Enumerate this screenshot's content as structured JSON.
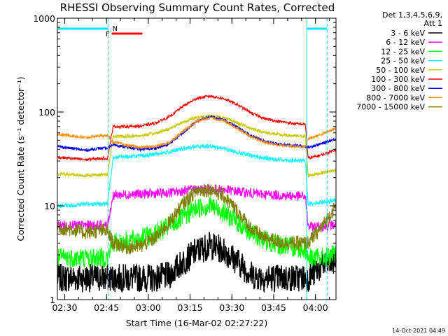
{
  "chart_data": {
    "type": "line",
    "title": "RHESSI Observing Summary Count Rates, Corrected",
    "xlabel": "Start Time (16-Mar-02 02:27:22)",
    "ylabel": "Corrected Count Rate (s⁻¹ detector⁻¹)",
    "x_unit": "minutes since 02:27:22",
    "xlim": [
      0,
      100
    ],
    "ylim": [
      1,
      1000
    ],
    "yscale": "log",
    "x_ticks": [
      {
        "t": 2.63,
        "label": "02:30"
      },
      {
        "t": 17.63,
        "label": "02:45"
      },
      {
        "t": 32.63,
        "label": "03:00"
      },
      {
        "t": 47.63,
        "label": "03:15"
      },
      {
        "t": 62.63,
        "label": "03:30"
      },
      {
        "t": 77.63,
        "label": "03:45"
      },
      {
        "t": 92.63,
        "label": "04:00"
      }
    ],
    "y_ticks": [
      {
        "v": 1,
        "label": "1"
      },
      {
        "v": 10,
        "label": "10"
      },
      {
        "v": 100,
        "label": "100"
      },
      {
        "v": 1000,
        "label": "1000"
      }
    ],
    "legend": {
      "position": "top-right",
      "header": [
        "Det 1,3,4,5,6,9,",
        "Att 1"
      ]
    },
    "timestamp": "14-Oct-2021 04:49",
    "flags": {
      "F_label": "F",
      "N_label": "N",
      "night_start_t": 18.2,
      "night_end_t": 89.5,
      "night_after_t": 96.8,
      "F_range_t": [
        19.5,
        30.5
      ]
    },
    "x": [
      0,
      5,
      10,
      15,
      18,
      20,
      25,
      30,
      35,
      40,
      45,
      50,
      55,
      60,
      65,
      70,
      75,
      80,
      85,
      89,
      90,
      95,
      100
    ],
    "series": [
      {
        "name": "3 - 6 keV",
        "color": "#000000",
        "values": [
          1.7,
          1.7,
          1.7,
          1.7,
          1.7,
          1.7,
          1.7,
          1.7,
          1.7,
          1.8,
          2.5,
          3.3,
          3.8,
          3.3,
          2.5,
          1.8,
          1.7,
          1.7,
          1.7,
          1.7,
          1.7,
          2.3,
          2.6
        ]
      },
      {
        "name": "6 - 12 keV",
        "color": "#ff00ff",
        "values": [
          6.2,
          6.2,
          6.2,
          6.2,
          6.2,
          13.0,
          13.2,
          13.4,
          13.5,
          13.8,
          14.4,
          15.0,
          15.2,
          14.8,
          14.2,
          13.6,
          13.2,
          12.9,
          12.7,
          12.6,
          6.0,
          6.0,
          6.3
        ]
      },
      {
        "name": "12 - 25 keV",
        "color": "#00ff00",
        "values": [
          2.8,
          2.8,
          2.8,
          2.8,
          2.8,
          4.0,
          4.2,
          4.5,
          5.0,
          6.0,
          7.5,
          9.5,
          10.0,
          8.5,
          6.5,
          5.0,
          4.2,
          3.8,
          3.6,
          3.5,
          2.8,
          2.8,
          3.0
        ]
      },
      {
        "name": "25 - 50 keV",
        "color": "#00ffff",
        "values": [
          10.0,
          10.0,
          10.5,
          10.5,
          10.5,
          33.0,
          33.5,
          34.0,
          35.5,
          37.5,
          40.5,
          43.0,
          43.5,
          40.5,
          37.0,
          34.0,
          32.0,
          31.0,
          30.5,
          30.0,
          10.5,
          11.0,
          11.5
        ]
      },
      {
        "name": "50 - 100 keV",
        "color": "#c8c800",
        "values": [
          22.0,
          21.5,
          21.0,
          21.5,
          21.5,
          55.0,
          55.0,
          56.0,
          59.0,
          66.0,
          78.0,
          88.0,
          91.0,
          86.0,
          76.0,
          66.0,
          60.0,
          57.0,
          55.5,
          55.0,
          21.0,
          22.5,
          24.0
        ]
      },
      {
        "name": "100 - 300 keV",
        "color": "#ff0000",
        "values": [
          33.0,
          32.0,
          31.0,
          32.0,
          32.0,
          70.0,
          70.0,
          71.0,
          76.0,
          88.0,
          115.0,
          140.0,
          148.0,
          138.0,
          118.0,
          96.0,
          84.0,
          79.0,
          75.0,
          74.0,
          32.0,
          35.0,
          40.0
        ]
      },
      {
        "name": "300 - 800 keV",
        "color": "#0000ff",
        "values": [
          43.0,
          41.0,
          39.0,
          41.0,
          41.0,
          45.0,
          42.0,
          40.0,
          41.0,
          45.0,
          60.0,
          80.0,
          89.0,
          82.0,
          68.0,
          55.0,
          48.0,
          45.0,
          44.0,
          43.0,
          42.0,
          46.0,
          52.0
        ]
      },
      {
        "name": "800 - 7000 keV",
        "color": "#ff8c00",
        "values": [
          58.0,
          56.0,
          53.0,
          56.0,
          56.0,
          48.0,
          44.0,
          42.0,
          43.0,
          47.0,
          62.0,
          80.0,
          87.0,
          80.0,
          66.0,
          53.0,
          47.0,
          44.0,
          43.0,
          43.0,
          52.0,
          58.0,
          67.0
        ]
      },
      {
        "name": "7000 - 15000 keV",
        "color": "#808000",
        "values": [
          5.8,
          5.6,
          5.2,
          5.4,
          5.4,
          4.0,
          3.6,
          3.7,
          4.5,
          6.5,
          10.5,
          14.5,
          15.0,
          12.5,
          8.5,
          5.5,
          4.5,
          4.1,
          4.0,
          4.0,
          4.0,
          6.0,
          10.0
        ]
      }
    ]
  }
}
